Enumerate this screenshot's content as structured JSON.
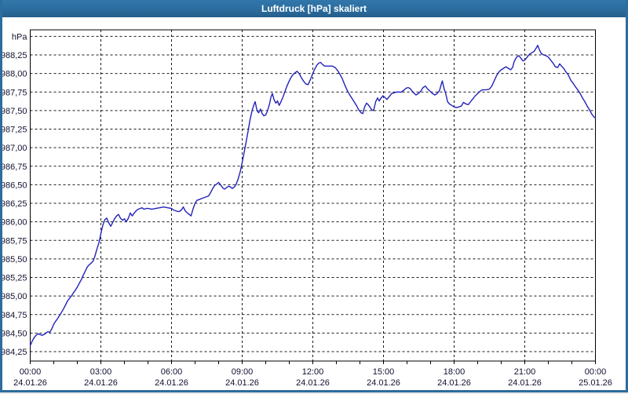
{
  "window": {
    "title": "Luftdruck [hPa] skaliert"
  },
  "colors": {
    "title_bar": "#2c6d9e",
    "frame": "#2c6d9e",
    "title_text": "#ffffff",
    "plot_border": "#000000",
    "grid": "#1a1a1a",
    "axis_label": "#101030",
    "line": "#2222bb",
    "background": "#ffffff"
  },
  "chart_data": {
    "type": "line",
    "title": "Luftdruck [hPa] skaliert",
    "legend": "none",
    "grid": "dashed both axes",
    "y_axis": {
      "unit_label": "hPa",
      "decimal_separator": ",",
      "min": 984.25,
      "max": 988.5,
      "step": 0.25,
      "ticks": [
        {
          "value": 984.25,
          "label": "984,25"
        },
        {
          "value": 984.5,
          "label": "984,50"
        },
        {
          "value": 984.75,
          "label": "984,75"
        },
        {
          "value": 985.0,
          "label": "985,00"
        },
        {
          "value": 985.25,
          "label": "985,25"
        },
        {
          "value": 985.5,
          "label": "985,50"
        },
        {
          "value": 985.75,
          "label": "985,75"
        },
        {
          "value": 986.0,
          "label": "986,00"
        },
        {
          "value": 986.25,
          "label": "986,25"
        },
        {
          "value": 986.5,
          "label": "986,50"
        },
        {
          "value": 986.75,
          "label": "986,75"
        },
        {
          "value": 987.0,
          "label": "987,00"
        },
        {
          "value": 987.25,
          "label": "987,25"
        },
        {
          "value": 987.5,
          "label": "987,50"
        },
        {
          "value": 987.75,
          "label": "987,75"
        },
        {
          "value": 988.0,
          "label": "988,00"
        },
        {
          "value": 988.25,
          "label": "988,25"
        },
        {
          "value": 988.5,
          "label": ""
        }
      ]
    },
    "x_axis": {
      "span_hours": 24,
      "minor_tick_every_hours": 1,
      "gridline_every_hours": 3,
      "ticks": [
        {
          "hour": 0,
          "time": "00:00",
          "date": "24.01.26"
        },
        {
          "hour": 3,
          "time": "03:00",
          "date": "24.01.26"
        },
        {
          "hour": 6,
          "time": "06:00",
          "date": "24.01.26"
        },
        {
          "hour": 9,
          "time": "09:00",
          "date": "24.01.26"
        },
        {
          "hour": 12,
          "time": "12:00",
          "date": "24.01.26"
        },
        {
          "hour": 15,
          "time": "15:00",
          "date": "24.01.26"
        },
        {
          "hour": 18,
          "time": "18:00",
          "date": "24.01.26"
        },
        {
          "hour": 21,
          "time": "21:00",
          "date": "24.01.26"
        },
        {
          "hour": 24,
          "time": "00:00",
          "date": "25.01.26"
        }
      ]
    },
    "series": [
      {
        "name": "Luftdruck",
        "color": "#2222bb",
        "points": [
          [
            0,
            984.33
          ],
          [
            0.08,
            984.39
          ],
          [
            0.17,
            984.44
          ],
          [
            0.25,
            984.47
          ],
          [
            0.33,
            984.49
          ],
          [
            0.42,
            984.48
          ],
          [
            0.5,
            984.47
          ],
          [
            0.58,
            984.48
          ],
          [
            0.67,
            984.5
          ],
          [
            0.75,
            984.52
          ],
          [
            0.83,
            984.51
          ],
          [
            0.92,
            984.56
          ],
          [
            1,
            984.62
          ],
          [
            1.08,
            984.66
          ],
          [
            1.17,
            984.7
          ],
          [
            1.25,
            984.74
          ],
          [
            1.33,
            984.78
          ],
          [
            1.42,
            984.83
          ],
          [
            1.5,
            984.88
          ],
          [
            1.58,
            984.93
          ],
          [
            1.67,
            984.97
          ],
          [
            1.75,
            985
          ],
          [
            1.83,
            985.04
          ],
          [
            1.92,
            985.08
          ],
          [
            2,
            985.12
          ],
          [
            2.08,
            985.17
          ],
          [
            2.17,
            985.22
          ],
          [
            2.25,
            985.28
          ],
          [
            2.33,
            985.33
          ],
          [
            2.42,
            985.39
          ],
          [
            2.5,
            985.42
          ],
          [
            2.58,
            985.44
          ],
          [
            2.67,
            985.47
          ],
          [
            2.75,
            985.54
          ],
          [
            2.83,
            985.63
          ],
          [
            2.92,
            985.72
          ],
          [
            3,
            985.84
          ],
          [
            3.08,
            985.95
          ],
          [
            3.17,
            986.03
          ],
          [
            3.25,
            986.05
          ],
          [
            3.33,
            985.99
          ],
          [
            3.42,
            985.94
          ],
          [
            3.5,
            985.99
          ],
          [
            3.58,
            986.04
          ],
          [
            3.67,
            986.08
          ],
          [
            3.75,
            986.1
          ],
          [
            3.83,
            986.05
          ],
          [
            3.92,
            986.02
          ],
          [
            4,
            986.04
          ],
          [
            4.08,
            986
          ],
          [
            4.17,
            986.05
          ],
          [
            4.25,
            986.12
          ],
          [
            4.33,
            986.08
          ],
          [
            4.42,
            986.12
          ],
          [
            4.5,
            986.15
          ],
          [
            4.58,
            986.17
          ],
          [
            4.67,
            986.18
          ],
          [
            4.75,
            986.19
          ],
          [
            4.83,
            986.17
          ],
          [
            4.92,
            986.18
          ],
          [
            5,
            986.18
          ],
          [
            5.17,
            986.17
          ],
          [
            5.33,
            986.18
          ],
          [
            5.5,
            986.19
          ],
          [
            5.67,
            986.2
          ],
          [
            5.83,
            986.19
          ],
          [
            6,
            986.18
          ],
          [
            6.08,
            986.16
          ],
          [
            6.17,
            986.15
          ],
          [
            6.25,
            986.14
          ],
          [
            6.33,
            986.14
          ],
          [
            6.42,
            986.16
          ],
          [
            6.5,
            986.2
          ],
          [
            6.58,
            986.15
          ],
          [
            6.67,
            986.12
          ],
          [
            6.75,
            986.1
          ],
          [
            6.83,
            986.08
          ],
          [
            6.92,
            986.18
          ],
          [
            7,
            986.25
          ],
          [
            7.08,
            986.29
          ],
          [
            7.17,
            986.3
          ],
          [
            7.25,
            986.31
          ],
          [
            7.33,
            986.32
          ],
          [
            7.42,
            986.33
          ],
          [
            7.5,
            986.34
          ],
          [
            7.58,
            986.35
          ],
          [
            7.67,
            986.4
          ],
          [
            7.75,
            986.45
          ],
          [
            7.83,
            986.49
          ],
          [
            7.92,
            986.51
          ],
          [
            8,
            986.53
          ],
          [
            8.08,
            986.5
          ],
          [
            8.17,
            986.46
          ],
          [
            8.25,
            986.44
          ],
          [
            8.33,
            986.46
          ],
          [
            8.42,
            986.48
          ],
          [
            8.5,
            986.47
          ],
          [
            8.58,
            986.45
          ],
          [
            8.67,
            986.47
          ],
          [
            8.75,
            986.51
          ],
          [
            8.83,
            986.58
          ],
          [
            8.92,
            986.68
          ],
          [
            9,
            986.8
          ],
          [
            9.08,
            986.93
          ],
          [
            9.17,
            987.08
          ],
          [
            9.25,
            987.22
          ],
          [
            9.33,
            987.37
          ],
          [
            9.42,
            987.5
          ],
          [
            9.5,
            987.58
          ],
          [
            9.55,
            987.62
          ],
          [
            9.63,
            987.5
          ],
          [
            9.7,
            987.47
          ],
          [
            9.78,
            987.52
          ],
          [
            9.85,
            987.46
          ],
          [
            9.92,
            987.43
          ],
          [
            10,
            987.44
          ],
          [
            10.08,
            987.5
          ],
          [
            10.17,
            987.6
          ],
          [
            10.22,
            987.68
          ],
          [
            10.28,
            987.73
          ],
          [
            10.35,
            987.65
          ],
          [
            10.43,
            987.6
          ],
          [
            10.5,
            987.63
          ],
          [
            10.57,
            987.57
          ],
          [
            10.65,
            987.62
          ],
          [
            10.73,
            987.68
          ],
          [
            10.82,
            987.76
          ],
          [
            10.9,
            987.83
          ],
          [
            11,
            987.9
          ],
          [
            11.08,
            987.95
          ],
          [
            11.17,
            987.99
          ],
          [
            11.25,
            988.01
          ],
          [
            11.33,
            988.03
          ],
          [
            11.42,
            988
          ],
          [
            11.5,
            987.95
          ],
          [
            11.6,
            987.9
          ],
          [
            11.7,
            987.86
          ],
          [
            11.8,
            987.85
          ],
          [
            11.9,
            987.92
          ],
          [
            12,
            988
          ],
          [
            12.08,
            988.06
          ],
          [
            12.17,
            988.11
          ],
          [
            12.25,
            988.14
          ],
          [
            12.33,
            988.15
          ],
          [
            12.42,
            988.12
          ],
          [
            12.5,
            988.1
          ],
          [
            12.67,
            988.1
          ],
          [
            12.83,
            988.1
          ],
          [
            12.95,
            988.08
          ],
          [
            13.05,
            988.04
          ],
          [
            13.15,
            987.99
          ],
          [
            13.25,
            987.93
          ],
          [
            13.35,
            987.85
          ],
          [
            13.45,
            987.78
          ],
          [
            13.55,
            987.72
          ],
          [
            13.65,
            987.67
          ],
          [
            13.75,
            987.62
          ],
          [
            13.85,
            987.57
          ],
          [
            13.95,
            987.51
          ],
          [
            14.05,
            987.47
          ],
          [
            14.12,
            987.46
          ],
          [
            14.2,
            987.55
          ],
          [
            14.28,
            987.6
          ],
          [
            14.35,
            987.58
          ],
          [
            14.42,
            987.55
          ],
          [
            14.5,
            987.51
          ],
          [
            14.58,
            987.5
          ],
          [
            14.67,
            987.62
          ],
          [
            14.75,
            987.67
          ],
          [
            14.82,
            987.63
          ],
          [
            14.9,
            987.67
          ],
          [
            14.98,
            987.7
          ],
          [
            15.05,
            987.68
          ],
          [
            15.15,
            987.65
          ],
          [
            15.25,
            987.69
          ],
          [
            15.35,
            987.73
          ],
          [
            15.45,
            987.74
          ],
          [
            15.55,
            987.75
          ],
          [
            15.65,
            987.75
          ],
          [
            15.75,
            987.75
          ],
          [
            15.85,
            987.77
          ],
          [
            15.95,
            987.8
          ],
          [
            16.05,
            987.81
          ],
          [
            16.12,
            987.8
          ],
          [
            16.2,
            987.77
          ],
          [
            16.28,
            987.74
          ],
          [
            16.38,
            987.71
          ],
          [
            16.48,
            987.73
          ],
          [
            16.58,
            987.76
          ],
          [
            16.68,
            987.81
          ],
          [
            16.78,
            987.83
          ],
          [
            16.88,
            987.79
          ],
          [
            16.98,
            987.76
          ],
          [
            17.08,
            987.73
          ],
          [
            17.18,
            987.71
          ],
          [
            17.28,
            987.73
          ],
          [
            17.38,
            987.77
          ],
          [
            17.45,
            987.85
          ],
          [
            17.5,
            987.9
          ],
          [
            17.57,
            987.8
          ],
          [
            17.65,
            987.72
          ],
          [
            17.72,
            987.62
          ],
          [
            17.8,
            987.59
          ],
          [
            17.9,
            987.57
          ],
          [
            18,
            987.55
          ],
          [
            18.1,
            987.54
          ],
          [
            18.2,
            987.55
          ],
          [
            18.3,
            987.56
          ],
          [
            18.4,
            987.61
          ],
          [
            18.5,
            987.59
          ],
          [
            18.6,
            987.58
          ],
          [
            18.7,
            987.62
          ],
          [
            18.8,
            987.66
          ],
          [
            18.9,
            987.7
          ],
          [
            19,
            987.73
          ],
          [
            19.1,
            987.76
          ],
          [
            19.2,
            987.78
          ],
          [
            19.35,
            987.78
          ],
          [
            19.5,
            987.79
          ],
          [
            19.6,
            987.83
          ],
          [
            19.7,
            987.9
          ],
          [
            19.8,
            987.97
          ],
          [
            19.9,
            988.02
          ],
          [
            20,
            988.05
          ],
          [
            20.1,
            988.07
          ],
          [
            20.2,
            988.09
          ],
          [
            20.3,
            988.07
          ],
          [
            20.4,
            988.05
          ],
          [
            20.48,
            988.08
          ],
          [
            20.55,
            988.16
          ],
          [
            20.65,
            988.22
          ],
          [
            20.75,
            988.24
          ],
          [
            20.85,
            988.2
          ],
          [
            20.92,
            988.17
          ],
          [
            21,
            988.18
          ],
          [
            21.1,
            988.22
          ],
          [
            21.2,
            988.26
          ],
          [
            21.3,
            988.28
          ],
          [
            21.4,
            988.3
          ],
          [
            21.5,
            988.35
          ],
          [
            21.55,
            988.38
          ],
          [
            21.62,
            988.32
          ],
          [
            21.7,
            988.27
          ],
          [
            21.8,
            988.25
          ],
          [
            21.9,
            988.24
          ],
          [
            22,
            988.22
          ],
          [
            22.1,
            988.18
          ],
          [
            22.2,
            988.14
          ],
          [
            22.3,
            988.09
          ],
          [
            22.4,
            988.08
          ],
          [
            22.48,
            988.13
          ],
          [
            22.56,
            988.1
          ],
          [
            22.65,
            988.07
          ],
          [
            22.75,
            988.02
          ],
          [
            22.85,
            987.98
          ],
          [
            22.95,
            987.91
          ],
          [
            23.05,
            987.87
          ],
          [
            23.15,
            987.82
          ],
          [
            23.25,
            987.78
          ],
          [
            23.35,
            987.73
          ],
          [
            23.45,
            987.67
          ],
          [
            23.55,
            987.62
          ],
          [
            23.65,
            987.56
          ],
          [
            23.75,
            987.51
          ],
          [
            23.85,
            987.45
          ],
          [
            23.95,
            987.41
          ],
          [
            24,
            987.4
          ]
        ]
      }
    ]
  }
}
